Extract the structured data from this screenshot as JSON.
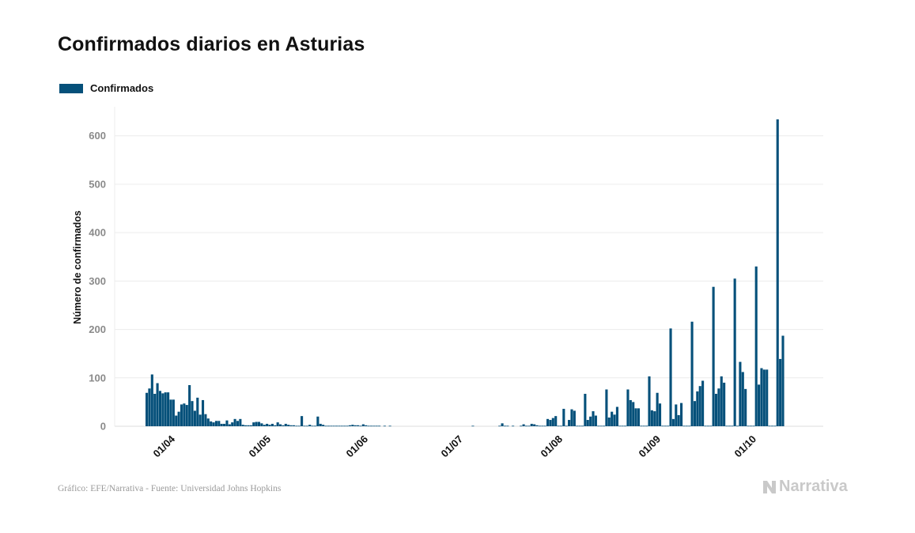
{
  "chart_data": {
    "type": "bar",
    "title": "Confirmados diarios en Asturias",
    "ylabel": "Número de confirmados",
    "xlabel": "",
    "ylim": [
      0,
      660
    ],
    "yticks": [
      0,
      100,
      200,
      300,
      400,
      500,
      600
    ],
    "xtick_labels": [
      "01/04",
      "01/05",
      "01/06",
      "01/07",
      "01/08",
      "01/09",
      "01/10"
    ],
    "grid": true,
    "legend_placement": "top-left",
    "series": [
      {
        "name": "Confirmados",
        "color": "#05507a",
        "values": [
          69,
          78,
          107,
          67,
          89,
          73,
          68,
          70,
          70,
          55,
          55,
          22,
          30,
          45,
          47,
          44,
          85,
          52,
          32,
          59,
          24,
          54,
          25,
          16,
          10,
          8,
          11,
          11,
          5,
          5,
          12,
          4,
          8,
          15,
          11,
          15,
          3,
          2,
          2,
          2,
          8,
          9,
          9,
          6,
          3,
          5,
          3,
          5,
          2,
          8,
          4,
          2,
          5,
          3,
          2,
          2,
          1,
          1,
          21,
          1,
          1,
          3,
          1,
          1,
          20,
          5,
          3,
          1,
          1,
          1,
          1,
          1,
          1,
          1,
          1,
          1,
          2,
          3,
          2,
          2,
          1,
          4,
          2,
          1,
          1,
          1,
          1,
          1,
          0,
          1,
          0,
          1,
          0,
          0,
          0,
          0,
          0,
          0,
          0,
          0,
          0,
          0,
          0,
          0,
          0,
          0,
          0,
          0,
          0,
          0,
          0,
          0,
          0,
          0,
          0,
          0,
          0,
          0,
          0,
          0,
          0,
          0,
          1,
          0,
          0,
          0,
          0,
          0,
          0,
          0,
          0,
          0,
          1,
          6,
          1,
          1,
          0,
          1,
          0,
          0,
          1,
          4,
          1,
          1,
          5,
          4,
          2,
          1,
          1,
          1,
          15,
          13,
          17,
          21,
          1,
          1,
          36,
          1,
          13,
          35,
          32,
          1,
          1,
          1,
          67,
          13,
          20,
          31,
          22,
          1,
          1,
          1,
          76,
          18,
          30,
          24,
          40,
          1,
          1,
          1,
          76,
          54,
          50,
          37,
          37,
          1,
          1,
          1,
          103,
          33,
          31,
          69,
          47,
          1,
          1,
          1,
          202,
          15,
          45,
          23,
          48,
          1,
          1,
          1,
          216,
          52,
          72,
          83,
          94,
          1,
          1,
          1,
          288,
          67,
          78,
          103,
          90,
          1,
          1,
          1,
          305,
          1,
          133,
          112,
          77,
          1,
          1,
          1,
          330,
          86,
          120,
          117,
          117,
          1,
          1,
          1,
          634,
          139,
          187
        ]
      }
    ]
  },
  "source_text": "Gráfico: EFE/Narrativa - Fuente: Universidad Johns Hopkins",
  "brand": {
    "name": "Narrativa",
    "logo_icon": "narrativa-n-icon",
    "color": "#c9c9c9"
  }
}
